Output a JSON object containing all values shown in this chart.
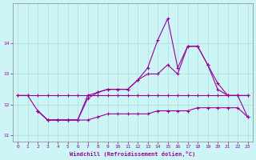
{
  "xlabel": "Windchill (Refroidissement éolien,°C)",
  "background_color": "#cef5f5",
  "grid_color": "#aadddd",
  "line_color": "#990099",
  "xlim": [
    -0.5,
    23.5
  ],
  "ylim": [
    10.8,
    15.3
  ],
  "yticks": [
    11,
    12,
    13,
    14
  ],
  "xticks": [
    0,
    1,
    2,
    3,
    4,
    5,
    6,
    7,
    8,
    9,
    10,
    11,
    12,
    13,
    14,
    15,
    16,
    17,
    18,
    19,
    20,
    21,
    22,
    23
  ],
  "series": {
    "line1_x": [
      0,
      1,
      2,
      3,
      4,
      5,
      6,
      7,
      8,
      9,
      10,
      11,
      12,
      13,
      14,
      15,
      16,
      17,
      18,
      19,
      20,
      21,
      22,
      23
    ],
    "line1_y": [
      12.3,
      12.3,
      12.3,
      12.3,
      12.3,
      12.3,
      12.3,
      12.3,
      12.3,
      12.3,
      12.3,
      12.3,
      12.3,
      12.3,
      12.3,
      12.3,
      12.3,
      12.3,
      12.3,
      12.3,
      12.3,
      12.3,
      12.3,
      12.3
    ],
    "line2_x": [
      2,
      3,
      4,
      5,
      6,
      7,
      8,
      9,
      10,
      11,
      12,
      13,
      14,
      15,
      16,
      17,
      18,
      19,
      20,
      21,
      22,
      23
    ],
    "line2_y": [
      11.8,
      11.5,
      11.5,
      11.5,
      11.5,
      11.5,
      11.6,
      11.7,
      11.7,
      11.7,
      11.7,
      11.7,
      11.8,
      11.8,
      11.8,
      11.8,
      11.9,
      11.9,
      11.9,
      11.9,
      11.9,
      11.6
    ],
    "line3_x": [
      0,
      1,
      2,
      3,
      4,
      5,
      6,
      7,
      8,
      9,
      10,
      11,
      12,
      13,
      14,
      15,
      16,
      17,
      18,
      19,
      20,
      21,
      22,
      23
    ],
    "line3_y": [
      12.3,
      12.3,
      11.8,
      11.5,
      11.5,
      11.5,
      11.5,
      12.2,
      12.4,
      12.5,
      12.5,
      12.5,
      12.8,
      13.0,
      13.0,
      13.3,
      13.0,
      13.9,
      13.9,
      13.3,
      12.5,
      12.3,
      12.3,
      12.3
    ],
    "line4_x": [
      2,
      3,
      4,
      5,
      6,
      7,
      8,
      9,
      10,
      11,
      12,
      13,
      14,
      15,
      16,
      17,
      18,
      19,
      20,
      21,
      22,
      23
    ],
    "line4_y": [
      11.8,
      11.5,
      11.5,
      11.5,
      11.5,
      12.3,
      12.4,
      12.5,
      12.5,
      12.5,
      12.8,
      13.2,
      14.1,
      14.8,
      13.2,
      13.9,
      13.9,
      13.3,
      12.7,
      12.3,
      12.3,
      11.6
    ]
  }
}
